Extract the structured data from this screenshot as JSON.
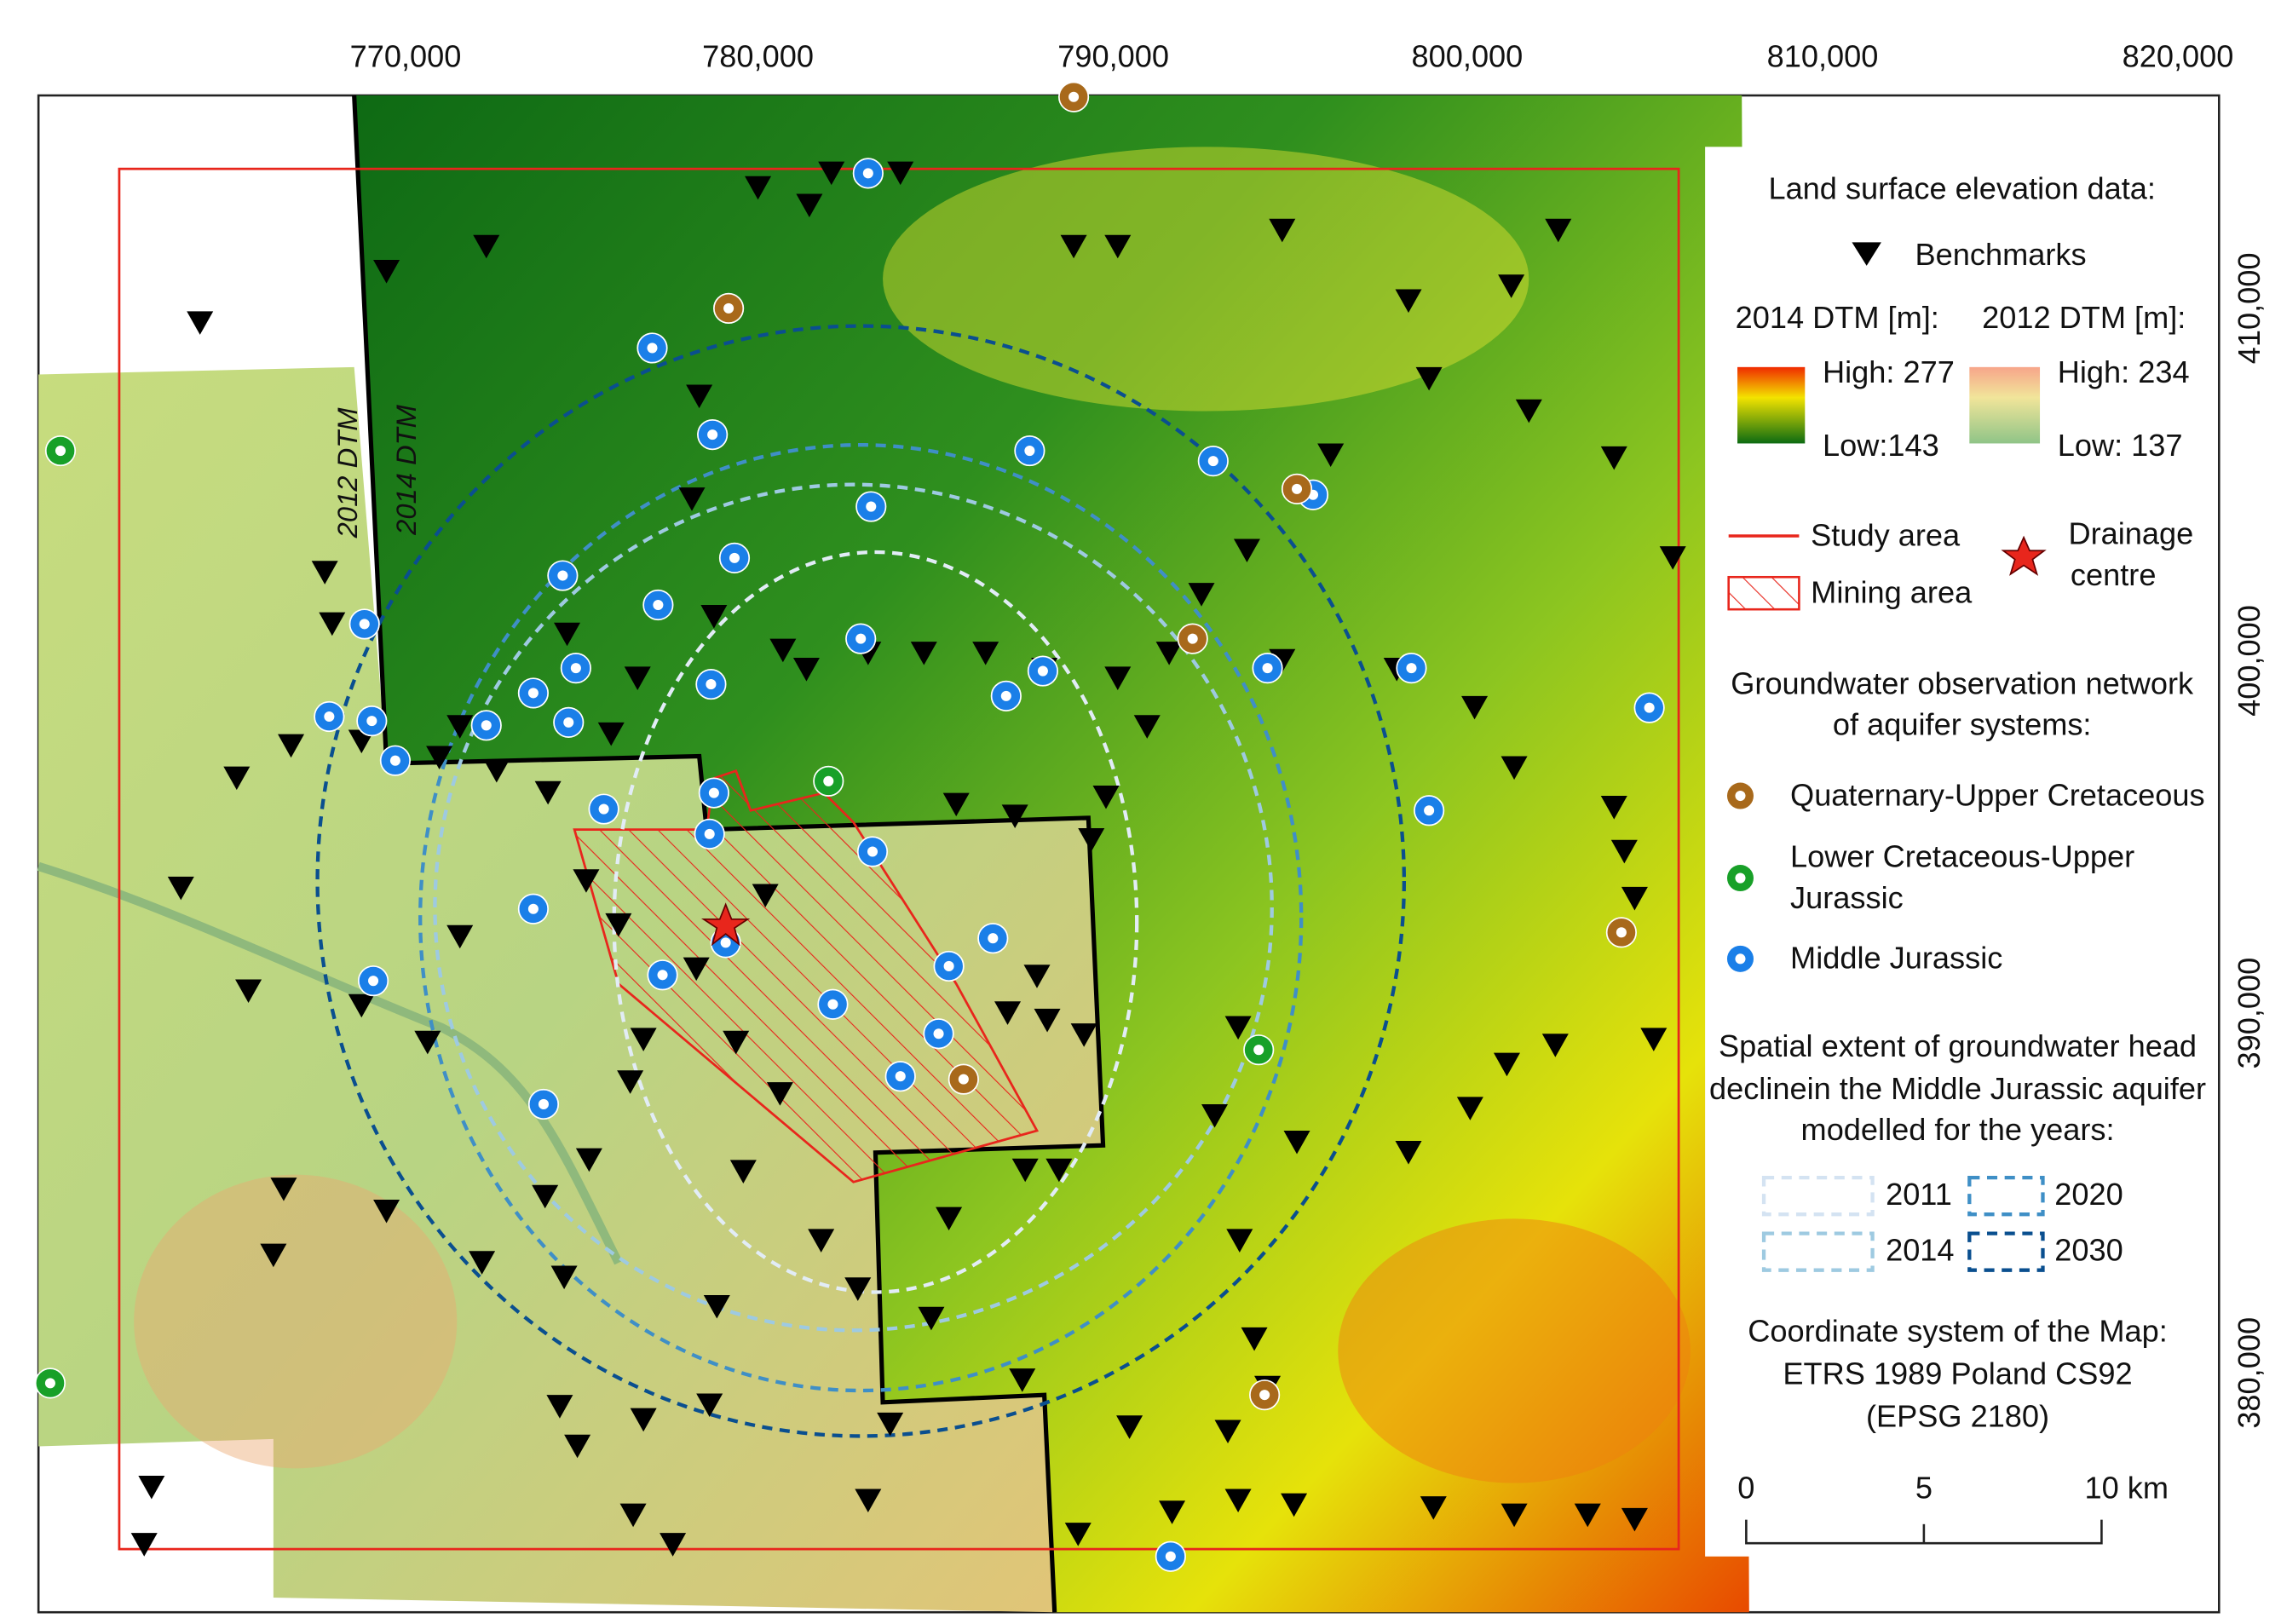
{
  "map": {
    "x_axis_labels": [
      "770,000",
      "780,000",
      "790,000",
      "800,000",
      "810,000",
      "820,000"
    ],
    "y_axis_labels": [
      "410,000",
      "400,000",
      "390,000",
      "380,000"
    ],
    "strip_labels": [
      "2012 DTM",
      "2014 DTM"
    ]
  },
  "legend": {
    "elevation_title": "Land surface elevation data:",
    "benchmarks": "Benchmarks",
    "dtm_2014": {
      "title": "2014 DTM [m]:",
      "high": "High: 277",
      "low": "Low:143"
    },
    "dtm_2012": {
      "title": "2012 DTM [m]:",
      "high": "High: 234",
      "low": "Low: 137"
    },
    "study_area": "Study area",
    "mining_area": "Mining area",
    "drainage": [
      "Drainage",
      "centre"
    ],
    "network_title": [
      "Groundwater observation network",
      "of aquifer systems:"
    ],
    "aquifers": [
      [
        "Quaternary-Upper Cretaceous"
      ],
      [
        "Lower Cretaceous-Upper",
        "Jurassic"
      ],
      [
        "Middle Jurassic"
      ]
    ],
    "extent_title": [
      "Spatial extent of groundwater head",
      "declinein the Middle Jurassic aquifer",
      "modelled for the years:"
    ],
    "years": [
      "2011",
      "2020",
      "2014",
      "2030"
    ],
    "crs": [
      "Coordinate system of the Map:",
      "ETRS 1989 Poland CS92",
      "(EPSG 2180)"
    ],
    "scale": [
      "0",
      "5",
      "10 km"
    ]
  }
}
